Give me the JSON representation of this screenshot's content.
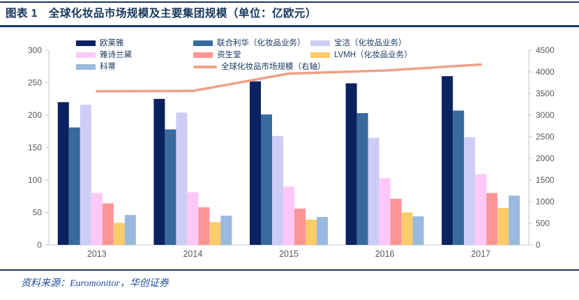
{
  "figure_label": "图表 1",
  "title": "图表 1　全球化妆品市场规模及主要集团规模（单位：亿欧元）",
  "source": "资料来源：Euromonitor，华创证券",
  "colors": {
    "accent_navy": "#17365d",
    "axis_text": "#595959",
    "axis_line": "#c6c6c6",
    "source_text": "#1f4e9b"
  },
  "chart_data": {
    "type": "bar",
    "title": "全球化妆品市场规模及主要集团规模",
    "unit": "亿欧元",
    "categories": [
      "2013",
      "2014",
      "2015",
      "2016",
      "2017"
    ],
    "series": [
      {
        "name": "欧莱雅",
        "color": "#0b2161",
        "values": [
          220,
          225,
          252,
          249,
          260
        ]
      },
      {
        "name": "联合利华（化妆品业务）",
        "color": "#376a9e",
        "values": [
          181,
          178,
          201,
          203,
          207
        ]
      },
      {
        "name": "宝洁（化妆品业务）",
        "color": "#cdcdf6",
        "values": [
          216,
          204,
          168,
          165,
          166
        ]
      },
      {
        "name": "雅诗兰黛",
        "color": "#fdc8f8",
        "values": [
          80,
          81,
          90,
          103,
          109
        ]
      },
      {
        "name": "资生堂",
        "color": "#fd9597",
        "values": [
          64,
          58,
          56,
          71,
          80
        ]
      },
      {
        "name": "LVMH（化妆品业务）",
        "color": "#fecb67",
        "values": [
          34,
          35,
          39,
          50,
          57
        ]
      },
      {
        "name": "科蒂",
        "color": "#98bade",
        "values": [
          46,
          45,
          43,
          44,
          76
        ]
      }
    ],
    "line_series": [
      {
        "name": "全球化妆品市场规模（右轴）",
        "color": "#efa184",
        "axis": "right",
        "values": [
          3550,
          3560,
          3960,
          4030,
          4170
        ]
      }
    ],
    "left_axis": {
      "min": 0,
      "max": 300,
      "step": 50
    },
    "right_axis": {
      "min": 0,
      "max": 4500,
      "step": 500
    },
    "legend_position": "top",
    "grid": false
  }
}
